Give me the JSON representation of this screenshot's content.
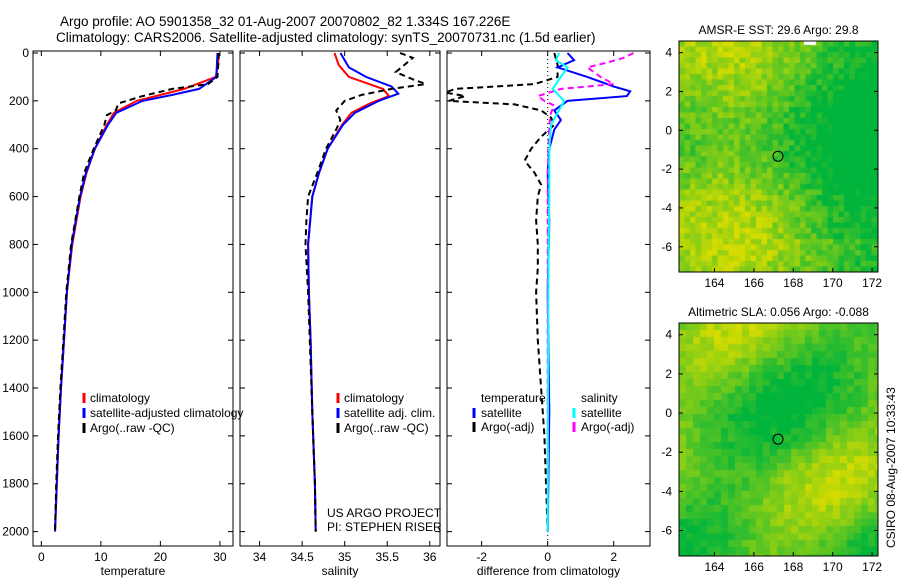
{
  "title_line1": "Argo profile: AO 5901358_32 01-Aug-2007 20070802_82 1.334S 167.226E",
  "title_line2": "Climatology: CARS2006. Satellite-adjusted climatology: synTS_20070731.nc (1.5d earlier)",
  "credit_line1": "US ARGO PROJECT",
  "credit_line2": "PI: STEPHEN RISER",
  "timestamp": "CSIRO 08-Aug-2007 10:33:43",
  "colors": {
    "climatology": "#ff0000",
    "satellite": "#0000ff",
    "argo": "#000000",
    "sal_satellite": "#00ffff",
    "sal_argo": "#ff00ff"
  },
  "chart_data": [
    {
      "type": "line",
      "xlabel": "temperature",
      "ylabel": "",
      "xlim": [
        -1.4,
        32.2
      ],
      "ylim": [
        2000,
        0
      ],
      "xticks": [
        0,
        10,
        20,
        30
      ],
      "yticks": [
        0,
        200,
        400,
        600,
        800,
        1000,
        1200,
        1400,
        1600,
        1800,
        2000
      ],
      "legend": [
        "climatology",
        "satellite-adjusted climatology",
        "Argo(..raw -QC)"
      ],
      "legend_placement": "lower-center",
      "series": [
        {
          "name": "climatology",
          "depth": [
            0,
            50,
            100,
            150,
            200,
            250,
            300,
            400,
            500,
            600,
            800,
            1000,
            1200,
            1400,
            1600,
            1800,
            2000
          ],
          "values": [
            29.8,
            29.7,
            29.3,
            24,
            16,
            12.2,
            11,
            9,
            7.6,
            6.6,
            5.2,
            4.3,
            3.8,
            3.3,
            2.9,
            2.6,
            2.3
          ]
        },
        {
          "name": "satellite-adjusted climatology",
          "depth": [
            0,
            50,
            100,
            150,
            175,
            200,
            250,
            300,
            400,
            500,
            600,
            800,
            1000,
            1200,
            1400,
            1600,
            1800,
            2000
          ],
          "values": [
            29.6,
            29.5,
            29.4,
            26.5,
            22,
            17,
            12.6,
            11.2,
            9,
            7.5,
            6.5,
            5.1,
            4.3,
            3.8,
            3.3,
            2.9,
            2.6,
            2.3
          ]
        },
        {
          "name": "Argo(..raw -QC)",
          "depth": [
            0,
            20,
            100,
            130,
            150,
            180,
            210,
            240,
            260,
            300,
            400,
            500,
            600,
            800,
            1000,
            1200,
            1400,
            1600,
            1800,
            2000
          ],
          "values": [
            29.8,
            29.8,
            29.6,
            28,
            22,
            17,
            13,
            12.5,
            11,
            10.6,
            8.8,
            7.2,
            6.4,
            5,
            4.2,
            3.7,
            3.2,
            2.8,
            2.5,
            2.3
          ]
        }
      ]
    },
    {
      "type": "line",
      "xlabel": "salinity",
      "xlim": [
        33.77,
        36.12
      ],
      "ylim": [
        2000,
        0
      ],
      "xticks": [
        34,
        34.5,
        35,
        35.5,
        36
      ],
      "legend": [
        "climatology",
        "satellite adj. clim.",
        "Argo(..raw -QC)"
      ],
      "legend_placement": "lower-center",
      "series": [
        {
          "name": "climatology",
          "depth": [
            0,
            50,
            100,
            150,
            180,
            210,
            250,
            300,
            400,
            500,
            600,
            800,
            1000,
            1200,
            1500,
            1800,
            2000
          ],
          "values": [
            34.88,
            34.93,
            35.05,
            35.45,
            35.52,
            35.3,
            35.08,
            34.97,
            34.8,
            34.7,
            34.62,
            34.57,
            34.58,
            34.6,
            34.62,
            34.65,
            34.66
          ]
        },
        {
          "name": "satellite adj. clim.",
          "depth": [
            0,
            30,
            60,
            100,
            140,
            170,
            200,
            250,
            300,
            400,
            500,
            600,
            800,
            1000,
            1200,
            1500,
            1800,
            2000
          ],
          "values": [
            34.95,
            35.0,
            35.05,
            35.25,
            35.55,
            35.63,
            35.4,
            35.12,
            34.98,
            34.8,
            34.7,
            34.62,
            34.57,
            34.58,
            34.6,
            34.62,
            34.65,
            34.66
          ]
        },
        {
          "name": "Argo(..raw -QC)",
          "depth": [
            0,
            20,
            50,
            80,
            110,
            130,
            150,
            175,
            200,
            240,
            280,
            320,
            400,
            500,
            600,
            700,
            800,
            1000,
            1200,
            1500,
            1800,
            2000
          ],
          "values": [
            35.65,
            35.8,
            35.7,
            35.6,
            35.8,
            35.95,
            35.55,
            35.2,
            35.0,
            34.9,
            34.95,
            34.9,
            34.78,
            34.68,
            34.57,
            34.55,
            34.54,
            34.57,
            34.59,
            34.62,
            34.65,
            34.66
          ]
        }
      ]
    },
    {
      "type": "line",
      "xlabel": "difference from climatology",
      "xlim": [
        -3.05,
        3.1
      ],
      "ylim": [
        2000,
        0
      ],
      "xticks": [
        -2,
        0,
        2
      ],
      "legend_titles": [
        "temperature",
        "salinity"
      ],
      "legend": [
        "satellite",
        "Argo(-adj)",
        "satellite",
        "Argo(-adj)"
      ],
      "legend_placement": "lower-center",
      "series": [
        {
          "name": "temperature satellite",
          "depth": [
            0,
            30,
            60,
            100,
            140,
            160,
            180,
            200,
            240,
            280,
            320,
            400,
            500,
            700,
            1000,
            1500,
            2000
          ],
          "values": [
            0.6,
            0.8,
            0.3,
            1.2,
            2.0,
            2.5,
            2.4,
            0.6,
            0.2,
            0.4,
            0.2,
            0.05,
            0,
            0.05,
            0,
            0.05,
            0
          ],
          "color": "satellite",
          "dash": false
        },
        {
          "name": "temperature Argo(-adj)",
          "depth": [
            0,
            50,
            100,
            130,
            150,
            165,
            180,
            200,
            215,
            240,
            270,
            300,
            350,
            400,
            450,
            500,
            550,
            600,
            700,
            800,
            900,
            1000,
            1200,
            1400,
            1600,
            1800,
            2000
          ],
          "values": [
            0.2,
            0.3,
            0.3,
            -0.4,
            -2.8,
            -3.1,
            -2.5,
            -3.0,
            -1.0,
            -0.2,
            0.1,
            0.2,
            -0.2,
            -0.5,
            -0.7,
            -0.4,
            -0.2,
            -0.3,
            -0.35,
            -0.3,
            -0.3,
            -0.35,
            -0.3,
            -0.2,
            -0.1,
            -0.05,
            0
          ]
        },
        {
          "name": "salinity satellite",
          "depth": [
            0,
            30,
            60,
            100,
            150,
            200,
            250,
            300,
            400,
            600,
            800,
            1000,
            1500,
            2000
          ],
          "values": [
            0.35,
            0.25,
            0.6,
            0.4,
            0.15,
            0.5,
            0.3,
            0.1,
            0.05,
            0.05,
            0.03,
            0.02,
            0.01,
            0
          ]
        },
        {
          "name": "salinity Argo(-adj)",
          "depth": [
            0,
            20,
            40,
            60,
            100,
            130,
            150,
            180,
            200,
            220,
            250,
            300,
            400,
            600,
            1000,
            2000
          ],
          "values": [
            2.6,
            2.3,
            1.8,
            1.2,
            1.6,
            2.0,
            0.4,
            -0.3,
            -0.1,
            0.2,
            0.1,
            0.05,
            0.02,
            0,
            0,
            0
          ]
        }
      ]
    },
    {
      "type": "heatmap",
      "title": "AMSR-E SST: 29.6 Argo: 29.8",
      "xlim": [
        162.2,
        172.3
      ],
      "ylim": [
        -7.3,
        4.6
      ],
      "xticks": [
        164,
        166,
        168,
        170,
        172
      ],
      "yticks": [
        4,
        2,
        0,
        -2,
        -4,
        -6
      ],
      "marker": {
        "lon": 167.226,
        "lat": -1.334
      }
    },
    {
      "type": "heatmap",
      "title": "Altimetric SLA: 0.056 Argo: -0.088",
      "xlim": [
        162.2,
        172.3
      ],
      "ylim": [
        -7.3,
        4.6
      ],
      "xticks": [
        164,
        166,
        168,
        170,
        172
      ],
      "yticks": [
        4,
        2,
        0,
        -2,
        -4,
        -6
      ],
      "marker": {
        "lon": 167.226,
        "lat": -1.334
      }
    }
  ]
}
